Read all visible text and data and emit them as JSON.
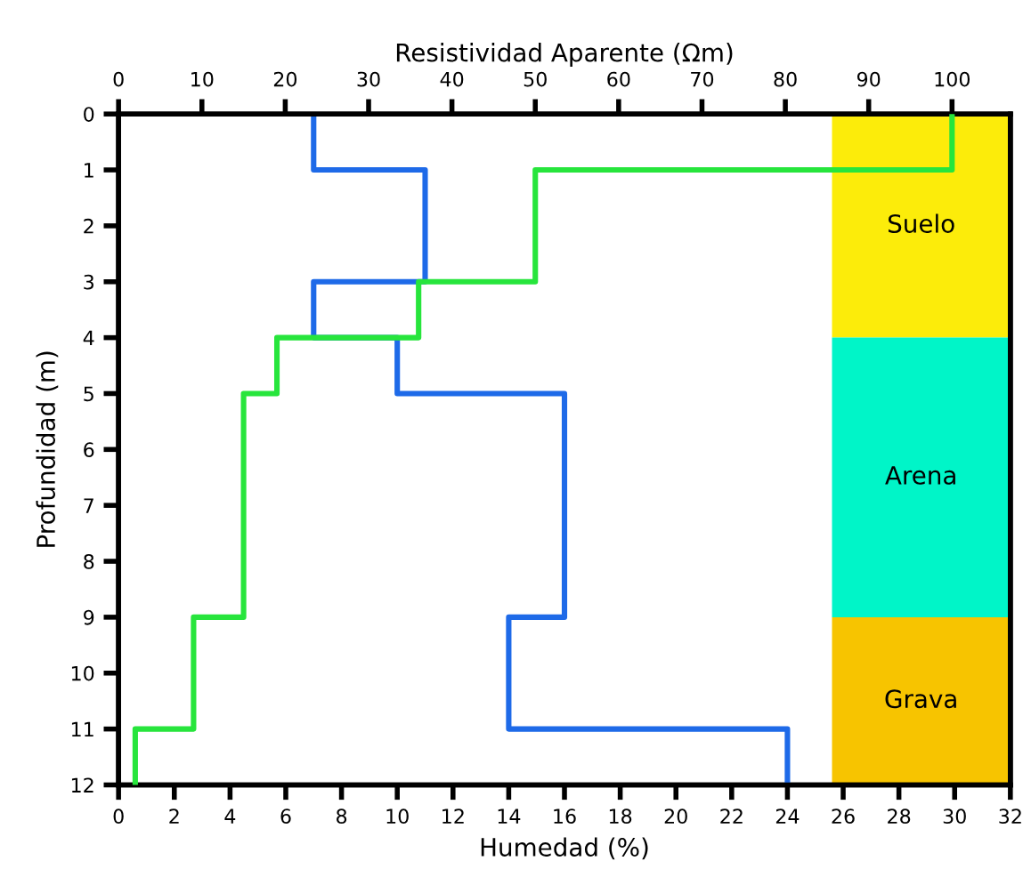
{
  "chart_data": {
    "type": "line",
    "xlabel": "Humedad (%)",
    "x2label": "Resistividad Aparente (Ωm)",
    "ylabel": "Profundidad (m)",
    "xlim": [
      0,
      32
    ],
    "xticks": [
      0,
      2,
      4,
      6,
      8,
      10,
      12,
      14,
      16,
      18,
      20,
      22,
      24,
      26,
      28,
      30,
      32
    ],
    "x2lim": [
      0,
      107
    ],
    "x2ticks": [
      0,
      10,
      20,
      30,
      40,
      50,
      60,
      70,
      80,
      90,
      100
    ],
    "ylim": [
      12,
      0
    ],
    "yticks": [
      0,
      1,
      2,
      3,
      4,
      5,
      6,
      7,
      8,
      9,
      10,
      11,
      12
    ],
    "grid": false,
    "legend": false,
    "line_style": "solid",
    "marker": "none",
    "series": [
      {
        "color": "#1e6ae8",
        "x": [
          7,
          7,
          11,
          11,
          7,
          7,
          10,
          10,
          16,
          16,
          14,
          14,
          24,
          24
        ],
        "values": [
          0,
          1,
          1,
          3,
          3,
          4,
          4,
          5,
          5,
          9,
          9,
          11,
          11,
          12
        ]
      },
      {
        "color": "#27e53c",
        "axis": "x2",
        "x": [
          100,
          100,
          50,
          50,
          36,
          36,
          19,
          19,
          15,
          15,
          9,
          9,
          2,
          2
        ],
        "values": [
          0,
          1,
          1,
          3,
          3,
          4,
          4,
          5,
          5,
          9,
          9,
          11,
          11,
          12
        ]
      }
    ],
    "bands": [
      {
        "axis": "y",
        "from": 0,
        "to": 4,
        "label": "Suelo",
        "color": "#fcec0a"
      },
      {
        "axis": "y",
        "from": 4,
        "to": 9,
        "label": "Arena",
        "color": "#00f5c8"
      },
      {
        "axis": "y",
        "from": 9,
        "to": 12,
        "label": "Grava",
        "color": "#f7c400"
      }
    ]
  }
}
